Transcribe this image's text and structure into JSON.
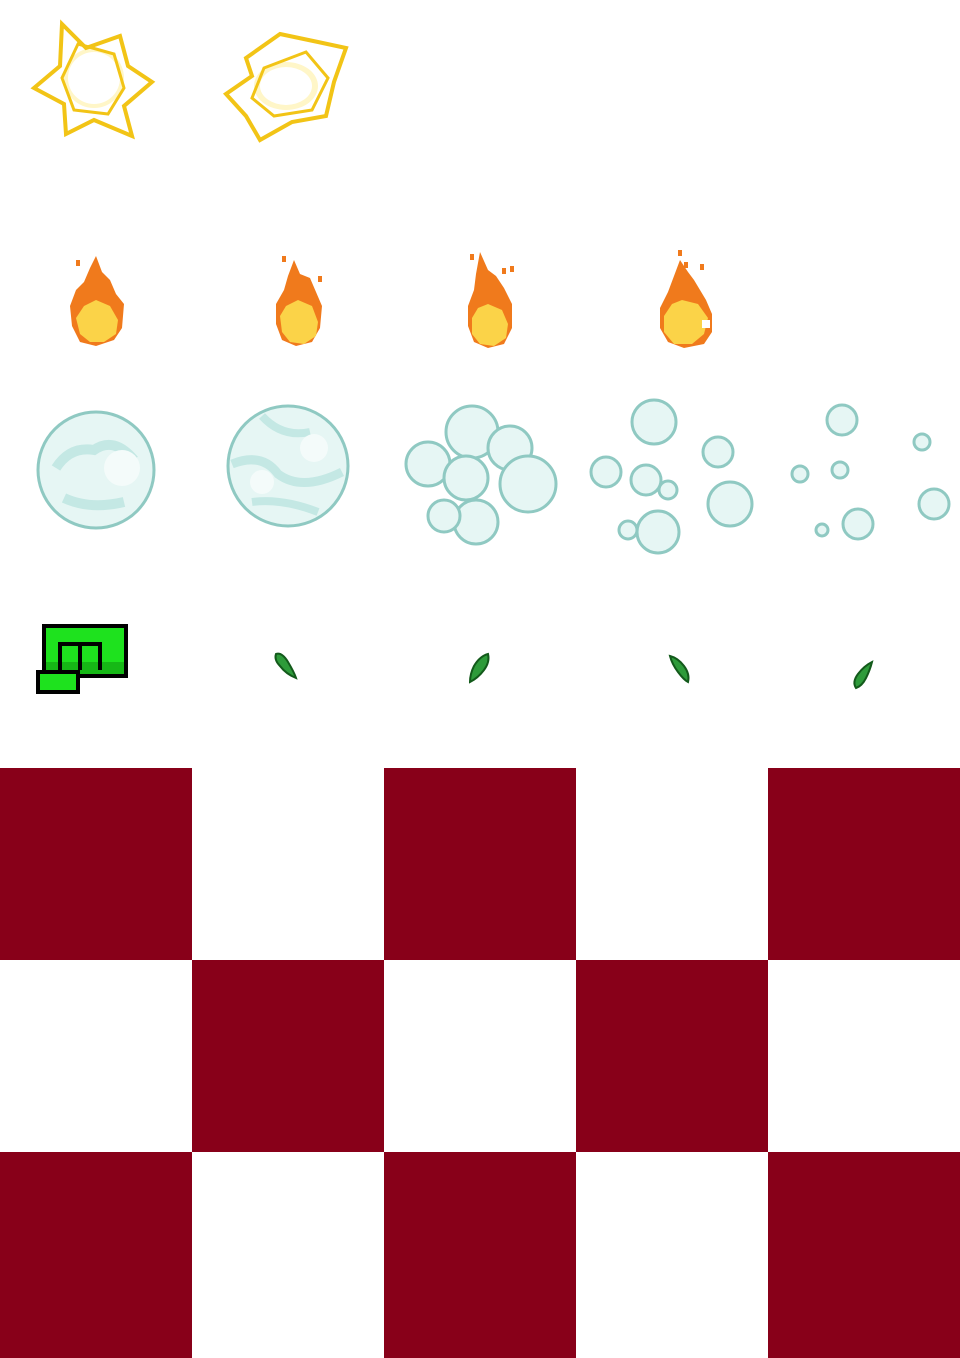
{
  "sheet": {
    "rows": [
      {
        "kind": "sparkle",
        "icon": "yellow-sparkle-burst-icon",
        "frames": 2
      },
      {
        "kind": "fire",
        "icon": "flame-icon",
        "frames": 4
      },
      {
        "kind": "smoke",
        "icon": "smoke-puff-icon",
        "frames": 5
      },
      {
        "kind": "projectile",
        "icons": [
          "green-fist-icon",
          "green-thorn-icon"
        ],
        "frames": 5
      }
    ],
    "checker": {
      "cols": 5,
      "rows": 3
    }
  },
  "colors": {
    "sparkle_stroke": "#f2c416",
    "sparkle_fill": "#fff6c8",
    "fire_outer": "#f07a1c",
    "fire_inner": "#fbd348",
    "smoke_fill": "#e6f6f4",
    "smoke_stroke": "#8fc9c2",
    "smoke_shade": "#c4e8e4",
    "fist_green": "#1ee21e",
    "fist_dark": "#0e8a0e",
    "thorn_green": "#2e9b3a",
    "thorn_dark": "#135a1b",
    "checker_dark": "#880019",
    "checker_light": "#ffffff"
  }
}
